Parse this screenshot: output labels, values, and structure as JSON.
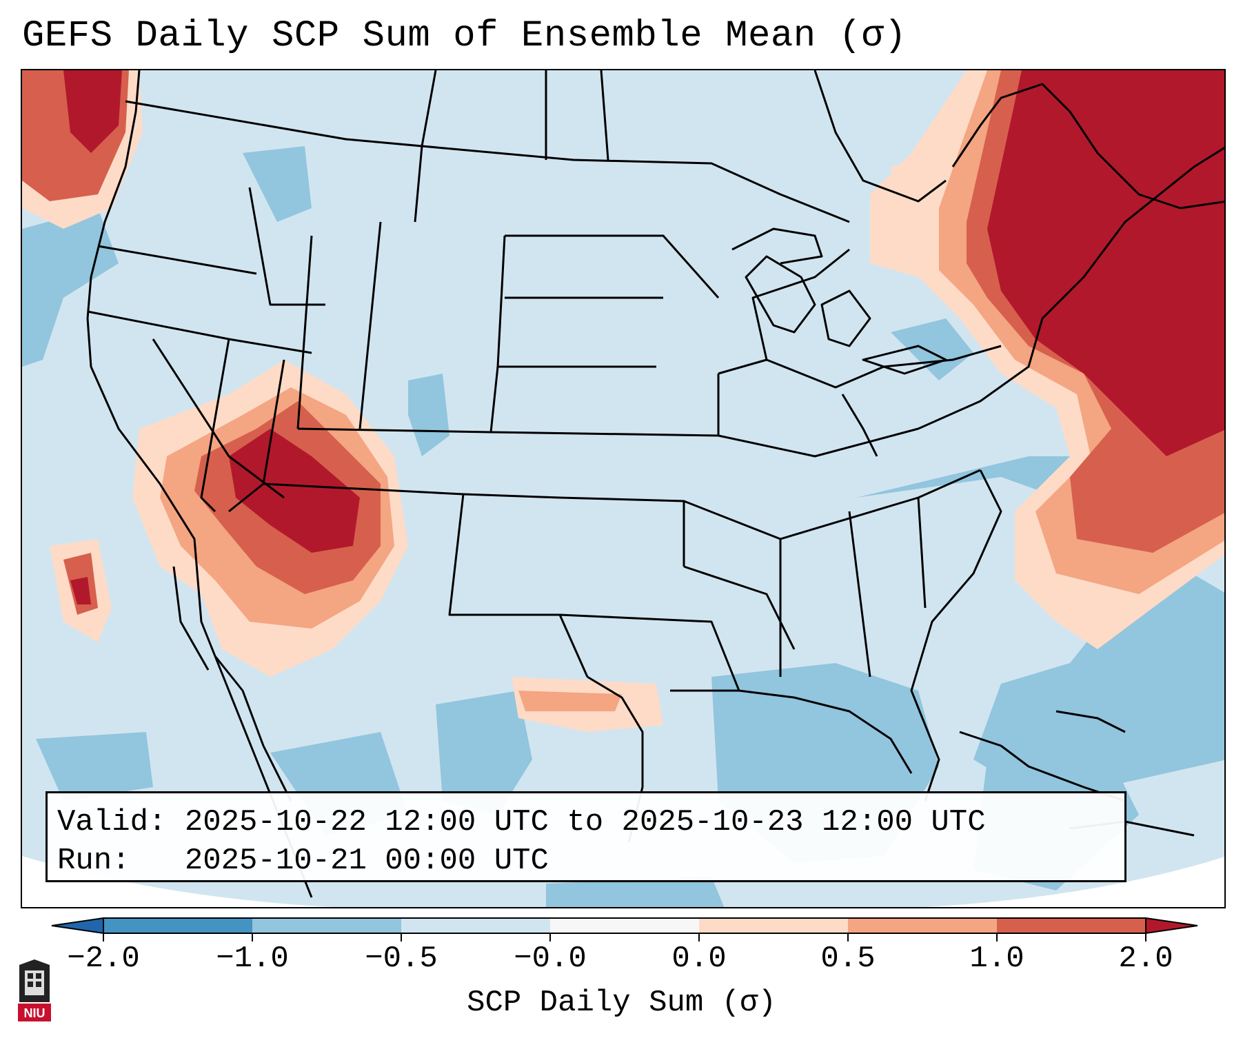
{
  "title": "GEFS Daily SCP Sum of Ensemble Mean (σ)",
  "map": {
    "region": "CONUS",
    "info": {
      "valid_line": "Valid: 2025-10-22 12:00 UTC to 2025-10-23 12:00 UTC",
      "run_line": "Run:   2025-10-21 00:00 UTC"
    }
  },
  "colorbar": {
    "label": "SCP Daily Sum (σ)",
    "ticks": [
      "−2.0",
      "−1.0",
      "−0.5",
      "−0.0",
      "0.0",
      "0.5",
      "1.0",
      "2.0"
    ],
    "bins": [
      {
        "from": "−2.0",
        "to": "−1.0",
        "color": "#4393c3"
      },
      {
        "from": "−1.0",
        "to": "−0.5",
        "color": "#92c5de"
      },
      {
        "from": "−0.5",
        "to": "−0.0",
        "color": "#d1e5f0"
      },
      {
        "from": "−0.0",
        "to": "0.0",
        "color": "#f7f7f7"
      },
      {
        "from": "0.0",
        "to": "0.5",
        "color": "#fddbc7"
      },
      {
        "from": "0.5",
        "to": "1.0",
        "color": "#f4a582"
      },
      {
        "from": "1.0",
        "to": "2.0",
        "color": "#d6604d"
      }
    ],
    "extend_low_color": "#2166ac",
    "extend_high_color": "#b2182b"
  },
  "logo": {
    "text": "NIU",
    "color": "#c8102e"
  }
}
